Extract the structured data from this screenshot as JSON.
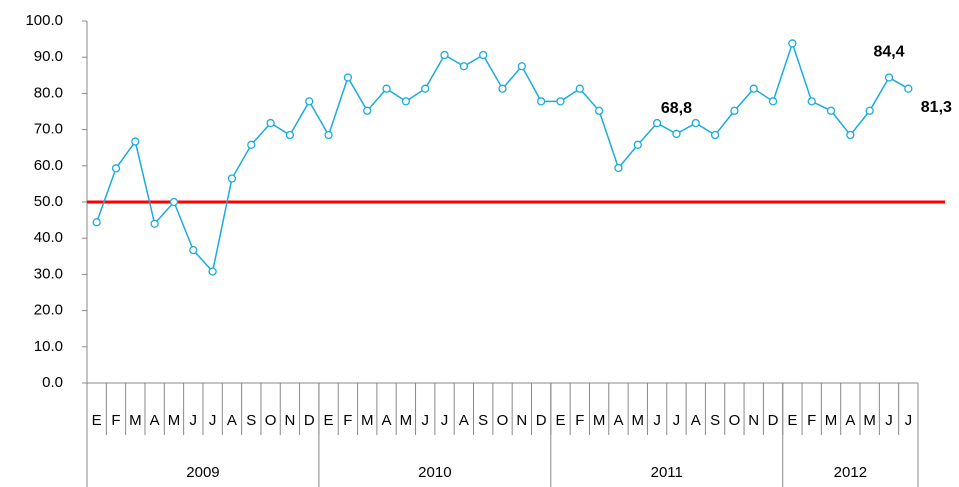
{
  "chart_data": {
    "type": "line",
    "categories": [
      "E",
      "F",
      "M",
      "A",
      "M",
      "J",
      "J",
      "A",
      "S",
      "O",
      "N",
      "D",
      "E",
      "F",
      "M",
      "A",
      "M",
      "J",
      "J",
      "A",
      "S",
      "O",
      "N",
      "D",
      "E",
      "F",
      "M",
      "A",
      "M",
      "J",
      "J",
      "A",
      "S",
      "O",
      "N",
      "D",
      "E",
      "F",
      "M",
      "A",
      "M",
      "J",
      "J"
    ],
    "groups": [
      {
        "label": "2009",
        "count": 12
      },
      {
        "label": "2010",
        "count": 12
      },
      {
        "label": "2011",
        "count": 12
      },
      {
        "label": "2012",
        "count": 7
      }
    ],
    "series": [
      {
        "color": "#1aabe0",
        "values": [
          44.4,
          59.3,
          66.7,
          44.0,
          50.0,
          36.7,
          30.8,
          56.5,
          65.8,
          71.8,
          68.5,
          77.8,
          68.5,
          84.4,
          75.2,
          81.3,
          77.8,
          81.3,
          90.6,
          87.5,
          90.6,
          81.3,
          87.5,
          77.8,
          77.8,
          81.3,
          75.2,
          59.4,
          65.8,
          71.8,
          68.8,
          71.8,
          68.5,
          75.2,
          81.3,
          77.8,
          93.8,
          77.8,
          75.2,
          68.5,
          75.2,
          84.4,
          81.3
        ],
        "value_labels": [
          null,
          null,
          null,
          null,
          null,
          null,
          null,
          null,
          null,
          null,
          null,
          null,
          null,
          null,
          null,
          null,
          null,
          null,
          null,
          null,
          null,
          null,
          null,
          null,
          null,
          null,
          null,
          null,
          null,
          null,
          "68,8",
          null,
          null,
          null,
          null,
          null,
          null,
          null,
          null,
          null,
          null,
          "84,4",
          "81,3"
        ]
      }
    ],
    "ylim": [
      0,
      100
    ],
    "yticks": [
      {
        "value": 0,
        "label": "0.0"
      },
      {
        "value": 10,
        "label": "10.0"
      },
      {
        "value": 20,
        "label": "20.0"
      },
      {
        "value": 30,
        "label": "30.0"
      },
      {
        "value": 40,
        "label": "40.0"
      },
      {
        "value": 50,
        "label": "50.0"
      },
      {
        "value": 60,
        "label": "60.0"
      },
      {
        "value": 70,
        "label": "70.0"
      },
      {
        "value": 80,
        "label": "80.0"
      },
      {
        "value": 90,
        "label": "90.0"
      },
      {
        "value": 100,
        "label": "100.0"
      }
    ],
    "reference_line": {
      "value": 50,
      "color": "#ff0000"
    }
  }
}
